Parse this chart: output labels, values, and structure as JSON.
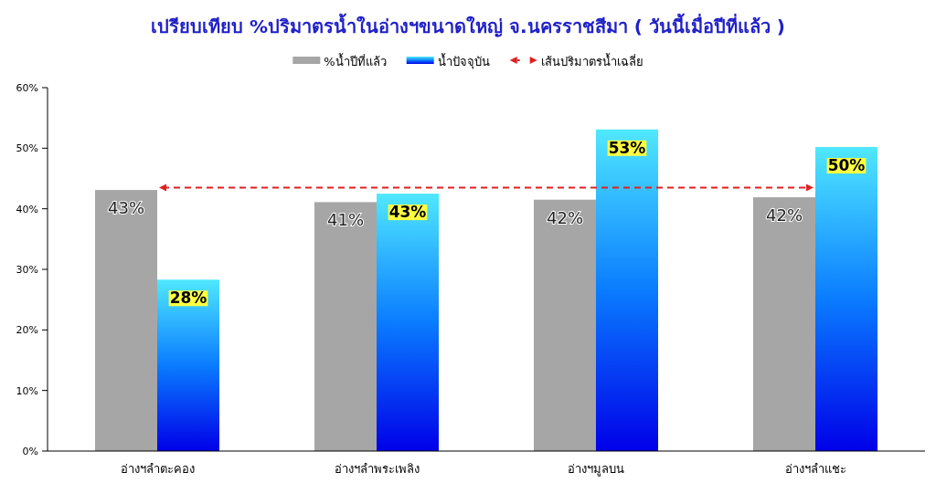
{
  "chart_data": {
    "type": "bar",
    "title": "เปรียบเทียบ %ปริมาตรน้ำในอ่างฯขนาดใหญ่ จ.นครราชสีมา ( วันนี้เมื่อปีที่แล้ว )",
    "categories": [
      "อ่างฯลำตะคอง",
      "อ่างฯลำพระเพลิง",
      "อ่างฯมูลบน",
      "อ่างฯลำแชะ"
    ],
    "series": [
      {
        "name": "%น้ำปีที่แล้ว",
        "color": "#a6a6a6",
        "values": [
          43.1,
          41.1,
          41.5,
          41.9
        ],
        "value_labels": [
          "43%",
          "41%",
          "42%",
          "42%"
        ]
      },
      {
        "name": "น้ำปัจจุบัน",
        "color": "#0a7cff",
        "values": [
          28.3,
          42.5,
          53.1,
          50.2
        ],
        "value_labels": [
          "28%",
          "43%",
          "53%",
          "50%"
        ]
      }
    ],
    "ylim": [
      0,
      60
    ],
    "yticks": [
      {
        "value": 0,
        "label": "0%"
      },
      {
        "value": 10,
        "label": "10%"
      },
      {
        "value": 20,
        "label": "20%"
      },
      {
        "value": 30,
        "label": "30%"
      },
      {
        "value": 40,
        "label": "40%"
      },
      {
        "value": 50,
        "label": "50%"
      },
      {
        "value": 60,
        "label": "60%"
      }
    ],
    "ref_lines": [
      {
        "axis": "y",
        "value": 43.5,
        "label": "เส้นปริมาตรน้ำเฉลี่ย",
        "color": "#e02020",
        "line_style": "dashed"
      }
    ],
    "legend": "top",
    "grid": false
  }
}
